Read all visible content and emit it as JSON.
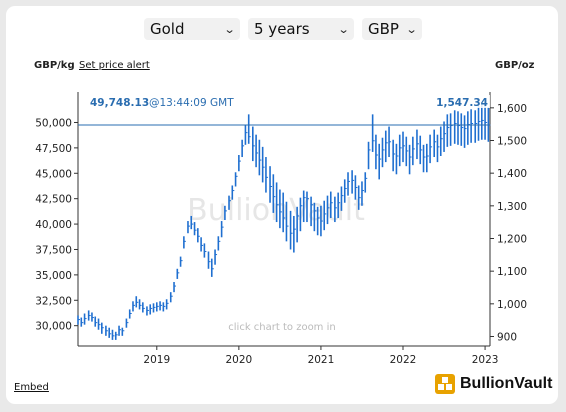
{
  "controls": {
    "metal": "Gold",
    "period": "5 years",
    "currency": "GBP",
    "set_price_alert": "Set price alert",
    "embed": "Embed"
  },
  "brand": {
    "name": "BullionVault",
    "watermark": "BullionVault",
    "accent": "#e8a200"
  },
  "chart_data": {
    "type": "bar",
    "subtype": "ohlc",
    "left_axis": {
      "label": "GBP/kg",
      "ticks": [
        "30,000",
        "32,500",
        "35,000",
        "37,500",
        "40,000",
        "42,500",
        "45,000",
        "47,500",
        "50,000"
      ],
      "ylim": [
        28000,
        53000
      ]
    },
    "right_axis": {
      "label": "GBP/oz",
      "ticks": [
        "900",
        "1,000",
        "1,100",
        "1,200",
        "1,300",
        "1,400",
        "1,500",
        "1,600"
      ]
    },
    "x_ticks": [
      "2019",
      "2020",
      "2021",
      "2022",
      "2023"
    ],
    "x_range": [
      2018.04,
      2023.06
    ],
    "hint": "click chart to zoom in",
    "current_kg": "49,748.13",
    "current_time": "@13:44:09 GMT",
    "current_oz": "1,547.34",
    "current_value_kg": 49748,
    "series_color": "#1f6fd0",
    "grid": false,
    "x": [
      2018.04,
      2018.08,
      2018.12,
      2018.17,
      2018.21,
      2018.25,
      2018.29,
      2018.33,
      2018.38,
      2018.42,
      2018.46,
      2018.5,
      2018.54,
      2018.58,
      2018.63,
      2018.67,
      2018.71,
      2018.75,
      2018.79,
      2018.83,
      2018.88,
      2018.92,
      2018.96,
      2019.0,
      2019.04,
      2019.08,
      2019.12,
      2019.17,
      2019.21,
      2019.25,
      2019.29,
      2019.33,
      2019.38,
      2019.42,
      2019.46,
      2019.5,
      2019.54,
      2019.58,
      2019.63,
      2019.67,
      2019.71,
      2019.75,
      2019.79,
      2019.83,
      2019.88,
      2019.92,
      2019.96,
      2020.0,
      2020.04,
      2020.08,
      2020.12,
      2020.17,
      2020.21,
      2020.25,
      2020.29,
      2020.33,
      2020.38,
      2020.42,
      2020.46,
      2020.5,
      2020.54,
      2020.58,
      2020.63,
      2020.67,
      2020.71,
      2020.75,
      2020.79,
      2020.83,
      2020.88,
      2020.92,
      2020.96,
      2021.0,
      2021.04,
      2021.08,
      2021.12,
      2021.17,
      2021.21,
      2021.25,
      2021.29,
      2021.33,
      2021.38,
      2021.42,
      2021.46,
      2021.5,
      2021.54,
      2021.58,
      2021.63,
      2021.67,
      2021.71,
      2021.75,
      2021.79,
      2021.83,
      2021.88,
      2021.92,
      2021.96,
      2022.0,
      2022.04,
      2022.08,
      2022.12,
      2022.17,
      2022.21,
      2022.25,
      2022.29,
      2022.33,
      2022.38,
      2022.42,
      2022.46,
      2022.5,
      2022.54,
      2022.58,
      2022.63,
      2022.67,
      2022.71,
      2022.75,
      2022.79,
      2022.83,
      2022.88,
      2022.92,
      2022.96,
      2023.0,
      2023.04
    ],
    "high": [
      31000,
      30800,
      31200,
      31500,
      31300,
      30900,
      30700,
      30300,
      30000,
      29800,
      29600,
      29400,
      30000,
      29800,
      30700,
      31600,
      32400,
      32900,
      32600,
      32300,
      31900,
      32100,
      32200,
      32300,
      32400,
      32300,
      32600,
      33300,
      34300,
      35600,
      36800,
      38800,
      40300,
      40800,
      40200,
      39600,
      38700,
      38100,
      37300,
      36600,
      37500,
      38800,
      40300,
      41800,
      42800,
      43800,
      45100,
      46800,
      48300,
      49800,
      50800,
      49600,
      48800,
      48300,
      47600,
      46600,
      45700,
      44900,
      44100,
      43400,
      43100,
      42200,
      41300,
      40800,
      41700,
      42600,
      43300,
      43200,
      42700,
      42100,
      41700,
      41800,
      42300,
      42800,
      43200,
      42700,
      43100,
      43700,
      44400,
      45100,
      45300,
      44800,
      43800,
      44200,
      45100,
      48100,
      50800,
      48800,
      47900,
      48500,
      49200,
      49600,
      48300,
      47900,
      48800,
      49100,
      48600,
      47800,
      48600,
      49300,
      48700,
      47800,
      47900,
      48800,
      49300,
      48800,
      49600,
      50100,
      50800,
      50900,
      51200,
      51100,
      50900,
      50700,
      51100,
      51300,
      51200,
      51600,
      51800,
      51700,
      51500
    ],
    "low": [
      30100,
      29900,
      30100,
      30500,
      30400,
      29900,
      29600,
      29200,
      29000,
      28800,
      28600,
      28600,
      29000,
      29000,
      29800,
      30700,
      31400,
      31800,
      31600,
      31300,
      31000,
      31100,
      31300,
      31400,
      31500,
      31400,
      31600,
      32300,
      33300,
      34600,
      35800,
      37600,
      39100,
      39500,
      38900,
      38200,
      37300,
      36700,
      35600,
      34800,
      36000,
      37400,
      38700,
      40400,
      41400,
      42400,
      43700,
      45200,
      46600,
      47800,
      47900,
      46200,
      45600,
      44800,
      44100,
      43100,
      42100,
      41100,
      40200,
      39600,
      39200,
      38300,
      37500,
      37200,
      38200,
      39300,
      40200,
      40200,
      39800,
      39300,
      38900,
      38800,
      39400,
      40000,
      40600,
      40200,
      40600,
      41300,
      42100,
      42800,
      43000,
      42400,
      41400,
      41800,
      43100,
      45400,
      47100,
      45400,
      44400,
      45600,
      46100,
      46600,
      45200,
      44900,
      45700,
      46100,
      45700,
      44900,
      45800,
      46400,
      45900,
      45100,
      45100,
      46000,
      46600,
      46100,
      46700,
      47100,
      47600,
      47700,
      47900,
      47800,
      47700,
      47500,
      47800,
      48000,
      48000,
      48200,
      48300,
      48300,
      48100
    ],
    "close": [
      30600,
      30300,
      30700,
      31000,
      30800,
      30300,
      30100,
      29800,
      29500,
      29200,
      29000,
      29100,
      29600,
      29500,
      30300,
      31200,
      32000,
      32300,
      32000,
      31700,
      31500,
      31700,
      31800,
      31900,
      32000,
      31900,
      32200,
      32900,
      33900,
      35200,
      36400,
      38300,
      39800,
      40000,
      39400,
      38800,
      37900,
      37300,
      36300,
      35600,
      37000,
      38300,
      39700,
      41300,
      42300,
      43300,
      44700,
      46200,
      47700,
      49000,
      48600,
      47700,
      47000,
      46300,
      45600,
      44600,
      43700,
      42700,
      41900,
      41200,
      40600,
      39800,
      39100,
      39500,
      40800,
      41800,
      42600,
      42500,
      41900,
      41300,
      40600,
      40300,
      41000,
      41600,
      42100,
      41600,
      42100,
      42800,
      43500,
      44200,
      44300,
      43600,
      42600,
      43300,
      44500,
      47300,
      48200,
      46800,
      46400,
      47300,
      48000,
      48100,
      46900,
      46700,
      47500,
      47700,
      47200,
      46600,
      47400,
      47900,
      47300,
      46600,
      46700,
      47600,
      48100,
      47600,
      48400,
      48900,
      49500,
      49700,
      49900,
      49700,
      49500,
      49400,
      49800,
      49900,
      49900,
      50100,
      50200,
      50000,
      49748
    ]
  }
}
